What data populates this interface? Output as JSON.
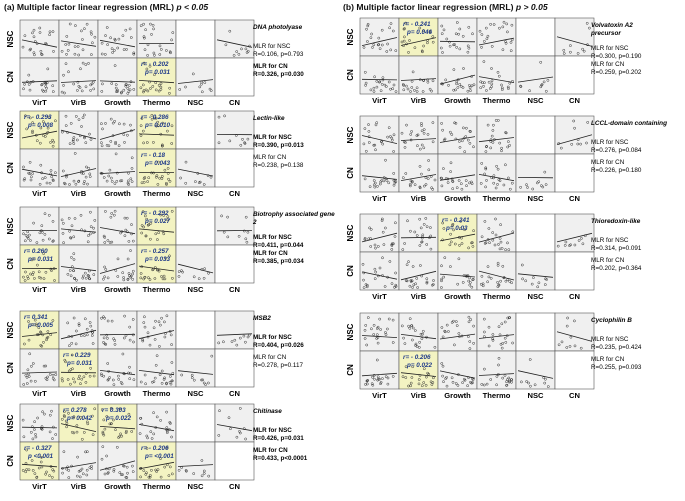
{
  "panel_a": {
    "title": "(a) Multiple factor linear regression (MRL) ",
    "p_label": "p < 0.05",
    "groups": [
      {
        "gene": "DNA photolyase",
        "nsc_title": "MLR for NSC",
        "nsc_stats": "R=0.106, p=0.793",
        "nsc_bold": false,
        "cn_title": "MLR for CN",
        "cn_stats": "R=0.326, p=0.030",
        "cn_bold": true,
        "highlights": [
          {
            "row": 1,
            "col": 3,
            "r": "r= - 0.202",
            "p": "p= 0.031"
          }
        ]
      },
      {
        "gene": "Lectin-like",
        "nsc_title": "MLR for NSC",
        "nsc_stats": "R=0.390, p=0.013",
        "nsc_bold": true,
        "cn_title": "MLR for CN",
        "cn_stats": "R=0.238, p=0.138",
        "cn_bold": false,
        "highlights": [
          {
            "row": 0,
            "col": 0,
            "r": "r= - 0.293",
            "p": "p= 0.008"
          },
          {
            "row": 0,
            "col": 3,
            "r": "r= - 0.286",
            "p": "p= 0.010"
          },
          {
            "row": 1,
            "col": 3,
            "r": "r= - 0.18",
            "p": "p= 0.043"
          }
        ]
      },
      {
        "gene": "Biotrophy associated gene 2",
        "nsc_title": "MLR for NSC",
        "nsc_stats": "R=0.411, p=0.044",
        "nsc_bold": true,
        "cn_title": "MLR for CN",
        "cn_stats": "R=0.385, p=0.034",
        "cn_bold": true,
        "highlights": [
          {
            "row": 0,
            "col": 3,
            "r": "r= - 0.292",
            "p": "p= 0.027"
          },
          {
            "row": 1,
            "col": 0,
            "r": "r= 0.260",
            "p": "p= 0.031"
          },
          {
            "row": 1,
            "col": 3,
            "r": "r= - 0.257",
            "p": "p= 0.033"
          }
        ]
      },
      {
        "gene": "MSB2",
        "nsc_title": "MLR for NSC",
        "nsc_stats": "R=0.404, p=0.026",
        "nsc_bold": true,
        "cn_title": "MLR for CN",
        "cn_stats": "R=0.278, p=0.117",
        "cn_bold": false,
        "highlights": [
          {
            "row": 0,
            "col": 0,
            "r": "r= 0.341",
            "p": "p= 0.005"
          },
          {
            "row": 1,
            "col": 1,
            "r": "r= - 0.229",
            "p": "p= 0.031"
          }
        ]
      },
      {
        "gene": "Chitinase",
        "nsc_title": "MLR for NSC",
        "nsc_stats": "R=0.426, p=0.031",
        "nsc_bold": true,
        "cn_title": "MLR for CN",
        "cn_stats": "R=0.433, p<0.0001",
        "cn_bold": true,
        "highlights": [
          {
            "row": 0,
            "col": 1,
            "r": "r= 0.278",
            "p": "p= 0.042"
          },
          {
            "row": 0,
            "col": 2,
            "r": "r= 0.303",
            "p": "p= 0.022"
          },
          {
            "row": 1,
            "col": 0,
            "r": "r= - 0.327",
            "p": "p <0.001"
          },
          {
            "row": 1,
            "col": 3,
            "r": "r= - 0.206",
            "p": "p= <0.001"
          }
        ]
      }
    ]
  },
  "panel_b": {
    "title": "(b) Multiple factor linear regression (MRL) ",
    "p_label": "p > 0.05",
    "groups": [
      {
        "gene": "Volvatoxin A2 precursor",
        "nsc_title": "MLR for NSC",
        "nsc_stats": "R=0.300, p=0.190",
        "nsc_bold": false,
        "cn_title": "MLR for CN",
        "cn_stats": "R=0.259, p=0.202",
        "cn_bold": false,
        "highlights": [
          {
            "row": 0,
            "col": 1,
            "r": "r= - 0.241",
            "p": "p= 0.046"
          }
        ]
      },
      {
        "gene": "LCCL-domain containing",
        "nsc_title": "MLR for NSC",
        "nsc_stats": "R=0.276, p=0.084",
        "nsc_bold": false,
        "cn_title": "MLR for CN",
        "cn_stats": "R=0.226, p=0.180",
        "cn_bold": false,
        "highlights": []
      },
      {
        "gene": "Thioredoxin-like",
        "nsc_title": "MLR for NSC",
        "nsc_stats": "R=0.314, p=0.091",
        "nsc_bold": false,
        "cn_title": "MLR for CN",
        "cn_stats": "R=0.202, p=0.364",
        "cn_bold": false,
        "highlights": [
          {
            "row": 0,
            "col": 2,
            "r": "r= - 0.241",
            "p": "p= 0.03"
          }
        ]
      },
      {
        "gene": "Cyclophilin B",
        "nsc_title": "MLR for NSC",
        "nsc_stats": "R=0.235, p=0.424",
        "nsc_bold": false,
        "cn_title": "MLR for CN",
        "cn_stats": "R=0.255, p=0.093",
        "cn_bold": false,
        "highlights": [
          {
            "row": 1,
            "col": 1,
            "r": "r= - 0.206",
            "p": "p= 0.022"
          }
        ]
      }
    ]
  },
  "row_labels": [
    "NSC",
    "CN"
  ],
  "col_labels": [
    "VirT",
    "VirB",
    "Growth",
    "Thermo",
    "NSC",
    "CN"
  ],
  "colors": {
    "highlight": "#f3f3c2",
    "cell": "#f0f0f0",
    "stat_text": "#1f3a8a",
    "point": "#333333",
    "line": "#222222"
  },
  "chart_data": {
    "type": "scatter",
    "description_note": "",
    "matrix_rows": [
      "NSC",
      "CN"
    ],
    "matrix_cols": [
      "VirT",
      "VirB",
      "Growth",
      "Thermo",
      "NSC",
      "CN"
    ]
  }
}
